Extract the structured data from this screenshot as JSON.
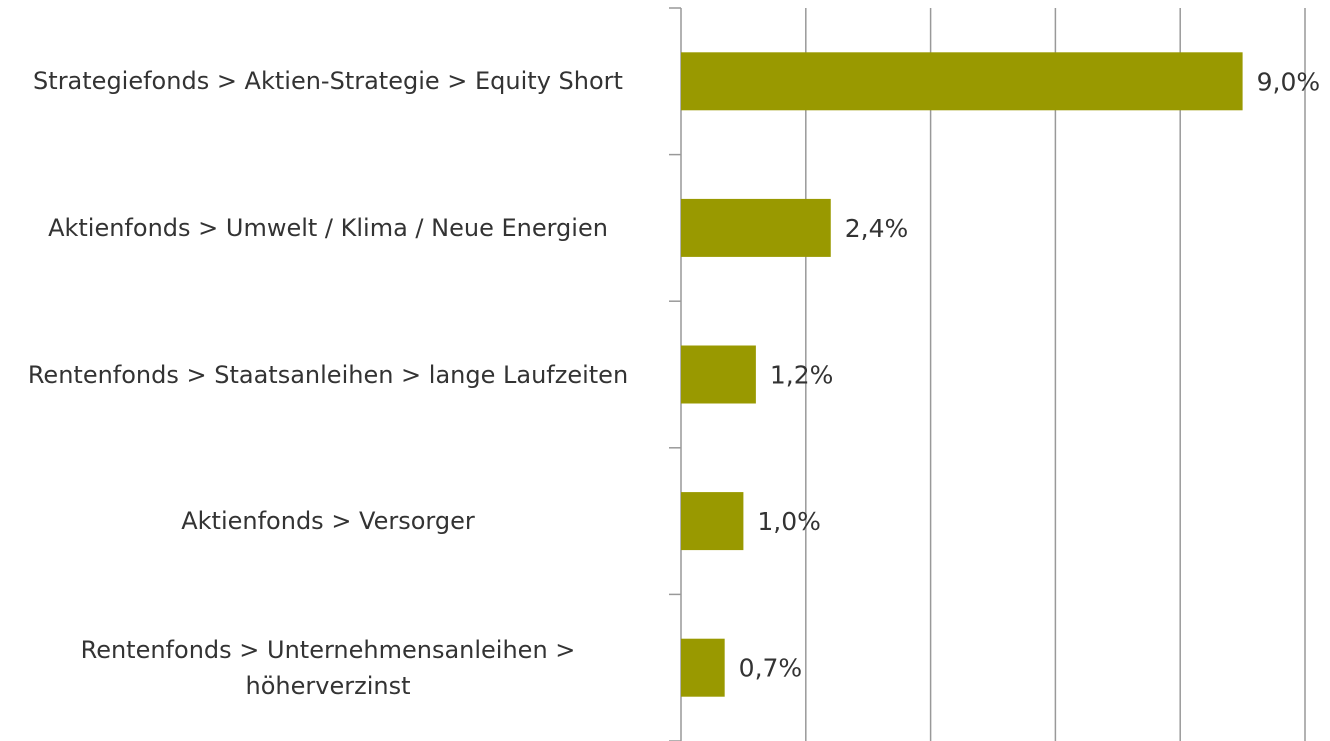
{
  "chart_data": {
    "type": "bar",
    "orientation": "horizontal",
    "categories": [
      "Strategiefonds > Aktien-Strategie > Equity Short",
      "Aktienfonds > Umwelt / Klima / Neue Energien",
      "Rentenfonds > Staatsanleihen > lange Laufzeiten",
      "Aktienfonds > Versorger",
      "Rentenfonds > Unternehmensanleihen > höherverzinst"
    ],
    "values": [
      9.0,
      2.4,
      1.2,
      1.0,
      0.7
    ],
    "value_labels": [
      "9,0%",
      "2,4%",
      "1,2%",
      "1,0%",
      "0,7%"
    ],
    "color": "#999900",
    "xlim": [
      0,
      10
    ],
    "xticks": [
      0,
      2,
      4,
      6,
      8,
      10
    ],
    "grid": true
  }
}
